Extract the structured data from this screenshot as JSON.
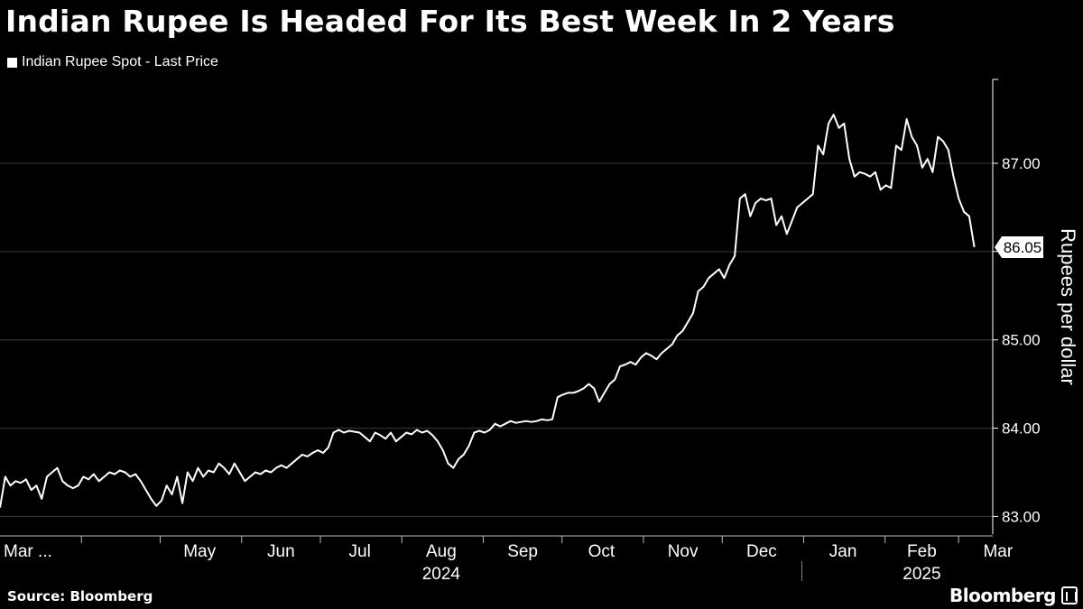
{
  "title": "Indian Rupee Is Headed For Its Best Week In 2 Years",
  "source": "Source: Bloomberg",
  "brand": "Bloomberg",
  "chart_data": {
    "type": "line",
    "series": [
      {
        "name": "Indian Rupee Spot - Last Price",
        "color": "#ffffff",
        "start": "2024-03-01",
        "end": "2025-03-07",
        "values": [
          83.1,
          83.45,
          83.35,
          83.4,
          83.38,
          83.42,
          83.3,
          83.35,
          83.2,
          83.45,
          83.5,
          83.55,
          83.4,
          83.35,
          83.32,
          83.35,
          83.45,
          83.42,
          83.48,
          83.4,
          83.45,
          83.5,
          83.48,
          83.52,
          83.5,
          83.45,
          83.48,
          83.4,
          83.3,
          83.2,
          83.12,
          83.18,
          83.35,
          83.25,
          83.45,
          83.15,
          83.5,
          83.4,
          83.55,
          83.45,
          83.52,
          83.5,
          83.6,
          83.55,
          83.48,
          83.6,
          83.5,
          83.4,
          83.45,
          83.5,
          83.48,
          83.52,
          83.5,
          83.55,
          83.58,
          83.55,
          83.6,
          83.65,
          83.7,
          83.68,
          83.72,
          83.75,
          83.72,
          83.78,
          83.95,
          83.98,
          83.95,
          83.97,
          83.96,
          83.95,
          83.9,
          83.85,
          83.95,
          83.92,
          83.88,
          83.95,
          83.85,
          83.9,
          83.95,
          83.93,
          83.98,
          83.95,
          83.97,
          83.92,
          83.85,
          83.75,
          83.6,
          83.55,
          83.65,
          83.7,
          83.8,
          83.95,
          83.97,
          83.95,
          83.98,
          84.05,
          84.02,
          84.05,
          84.08,
          84.06,
          84.07,
          84.08,
          84.07,
          84.08,
          84.1,
          84.09,
          84.1,
          84.35,
          84.38,
          84.4,
          84.4,
          84.42,
          84.45,
          84.5,
          84.45,
          84.3,
          84.4,
          84.5,
          84.55,
          84.7,
          84.72,
          84.75,
          84.72,
          84.8,
          84.85,
          84.82,
          84.78,
          84.85,
          84.9,
          84.95,
          85.05,
          85.1,
          85.2,
          85.3,
          85.55,
          85.6,
          85.7,
          85.75,
          85.8,
          85.7,
          85.85,
          85.95,
          86.6,
          86.65,
          86.4,
          86.55,
          86.6,
          86.58,
          86.6,
          86.3,
          86.4,
          86.2,
          86.35,
          86.5,
          86.55,
          86.6,
          86.65,
          87.2,
          87.1,
          87.45,
          87.55,
          87.4,
          87.45,
          87.05,
          86.85,
          86.9,
          86.88,
          86.85,
          86.9,
          86.7,
          86.75,
          86.72,
          87.2,
          87.15,
          87.5,
          87.3,
          87.2,
          86.95,
          87.05,
          86.9,
          87.3,
          87.25,
          87.15,
          86.85,
          86.6,
          86.45,
          86.4,
          86.05
        ]
      }
    ],
    "ylabel": "Rupees per dollar",
    "ylim": [
      82.8,
      87.95
    ],
    "yticks": [
      83,
      84,
      85,
      86,
      87
    ],
    "ytick_labels": [
      "83.00",
      "84.00",
      "85.00",
      "",
      "87.00"
    ],
    "last_value_label": "86.05",
    "xaxis": {
      "type": "date",
      "start": "2024-03-01",
      "end": "2025-03-14",
      "month_labels": [
        {
          "label": "Mar ...",
          "date": "2024-03-01",
          "align": "left"
        },
        {
          "label": "May",
          "date": "2024-05-16"
        },
        {
          "label": "Jun",
          "date": "2024-06-16"
        },
        {
          "label": "Jul",
          "date": "2024-07-16"
        },
        {
          "label": "Aug",
          "date": "2024-08-16"
        },
        {
          "label": "Sep",
          "date": "2024-09-16"
        },
        {
          "label": "Oct",
          "date": "2024-10-16"
        },
        {
          "label": "Nov",
          "date": "2024-11-16"
        },
        {
          "label": "Dec",
          "date": "2024-12-16"
        },
        {
          "label": "Jan",
          "date": "2025-01-16"
        },
        {
          "label": "Feb",
          "date": "2025-02-15"
        },
        {
          "label": "Mar",
          "date": "2025-03-16"
        }
      ],
      "tick_dates": [
        "2024-04-01",
        "2024-05-01",
        "2024-06-01",
        "2024-07-01",
        "2024-08-01",
        "2024-09-01",
        "2024-10-01",
        "2024-11-01",
        "2024-12-01",
        "2025-01-01",
        "2025-02-01",
        "2025-03-01"
      ],
      "year_labels": [
        {
          "label": "2024",
          "date": "2024-08-16"
        },
        {
          "label": "2025",
          "date": "2025-02-15"
        }
      ],
      "year_separator_date": "2025-01-01"
    },
    "grid": "horizontal",
    "legend_position": "top-left"
  }
}
